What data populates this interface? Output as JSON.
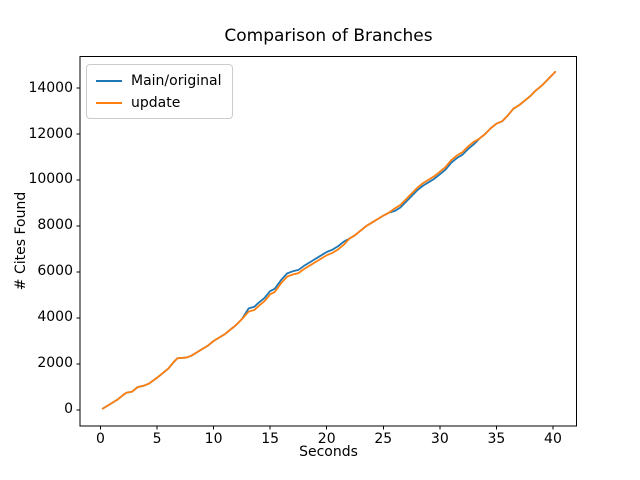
{
  "chart_data": {
    "type": "line",
    "title": "Comparison of Branches",
    "xlabel": "Seconds",
    "ylabel": "# Cites Found",
    "xlim": [
      -1.81,
      42.08
    ],
    "ylim": [
      -696,
      15361
    ],
    "xticks": [
      0,
      5,
      10,
      15,
      20,
      25,
      30,
      35,
      40
    ],
    "yticks": [
      0,
      2000,
      4000,
      6000,
      8000,
      10000,
      12000,
      14000
    ],
    "grid": false,
    "legend_position": "upper left",
    "x": [
      0.2,
      1,
      1.5,
      2,
      2.3,
      2.8,
      3.3,
      3.8,
      4.3,
      5,
      5.5,
      6,
      6.5,
      6.8,
      7.6,
      8,
      8.5,
      9,
      9.5,
      10,
      10.5,
      11,
      11.5,
      12,
      12.5,
      13.1,
      13.6,
      14,
      14.5,
      15,
      15.4,
      16,
      16.5,
      17,
      17.5,
      18,
      18.5,
      19,
      19.5,
      20,
      20.5,
      21,
      21.5,
      22,
      22.5,
      23,
      23.5,
      24,
      24.5,
      25,
      25.5,
      26,
      26.5,
      27,
      27.5,
      28,
      28.5,
      29,
      29.5,
      30,
      30.5,
      31,
      31.5,
      32,
      32.5,
      33,
      33.5,
      34,
      34.5,
      35,
      35.5,
      36,
      36.5,
      37,
      37.5,
      38,
      38.5,
      39,
      39.5,
      40.2
    ],
    "series": [
      {
        "name": "Main/original",
        "color": "#1f77b4",
        "values": [
          60,
          300,
          450,
          650,
          750,
          800,
          1000,
          1050,
          1150,
          1400,
          1600,
          1800,
          2100,
          2250,
          2280,
          2350,
          2500,
          2650,
          2800,
          3000,
          3150,
          3300,
          3500,
          3700,
          3950,
          4420,
          4490,
          4670,
          4870,
          5170,
          5270,
          5670,
          5940,
          6030,
          6090,
          6270,
          6420,
          6570,
          6720,
          6870,
          6970,
          7120,
          7320,
          7450,
          7600,
          7800,
          8000,
          8150,
          8300,
          8450,
          8580,
          8650,
          8800,
          9050,
          9300,
          9550,
          9750,
          9900,
          10050,
          10250,
          10450,
          10750,
          10950,
          11100,
          11350,
          11550,
          11800,
          12000,
          12250,
          12450,
          12550,
          12800,
          13100,
          13250,
          13450,
          13650,
          13900,
          14100,
          14350,
          14700
        ]
      },
      {
        "name": "update",
        "color": "#ff7f0e",
        "values": [
          60,
          300,
          450,
          650,
          750,
          800,
          1000,
          1050,
          1150,
          1400,
          1600,
          1800,
          2100,
          2250,
          2280,
          2350,
          2500,
          2650,
          2800,
          3000,
          3150,
          3300,
          3500,
          3700,
          3950,
          4280,
          4350,
          4530,
          4730,
          5030,
          5130,
          5530,
          5800,
          5890,
          5950,
          6130,
          6280,
          6430,
          6580,
          6730,
          6830,
          6980,
          7180,
          7450,
          7600,
          7800,
          8000,
          8150,
          8300,
          8450,
          8580,
          8760,
          8910,
          9160,
          9410,
          9660,
          9860,
          10010,
          10160,
          10360,
          10560,
          10860,
          11060,
          11210,
          11460,
          11660,
          11800,
          12000,
          12250,
          12450,
          12550,
          12800,
          13100,
          13250,
          13450,
          13650,
          13900,
          14100,
          14350,
          14700
        ]
      }
    ]
  }
}
